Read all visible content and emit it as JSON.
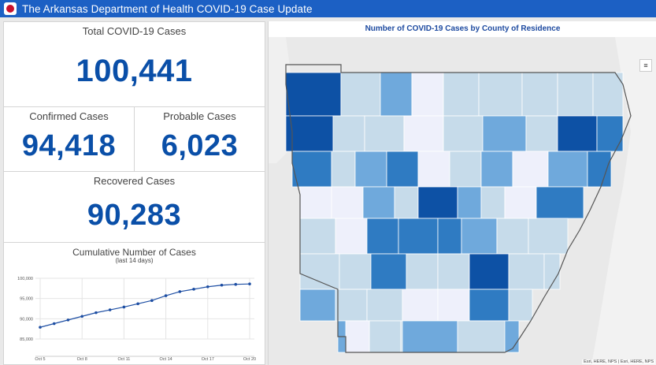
{
  "header": {
    "title": "The Arkansas Department of Health COVID-19 Case Update"
  },
  "total": {
    "label": "Total COVID-19 Cases",
    "value": "100,441"
  },
  "confirmed": {
    "label": "Confirmed Cases",
    "value": "94,418"
  },
  "probable": {
    "label": "Probable Cases",
    "value": "6,023"
  },
  "recovered": {
    "label": "Recovered Cases",
    "value": "90,283"
  },
  "map": {
    "title": "Number of COVID-19 Cases by County of Residence",
    "attribution": "Esri, HERE, NPS | Esri, HERE, NPS",
    "legend_icon": "legend-list-icon",
    "colors": {
      "very_light": "#eef0fb",
      "light": "#c6dbea",
      "medium_light": "#6fa9dc",
      "medium": "#2f7bc2",
      "dark": "#0d51a5"
    }
  },
  "chart_data": {
    "type": "line",
    "title": "Cumulative Number of Cases",
    "subtitle": "(last 14 days)",
    "x": [
      "Oct 5",
      "Oct 6",
      "Oct 7",
      "Oct 8",
      "Oct 9",
      "Oct 10",
      "Oct 11",
      "Oct 12",
      "Oct 13",
      "Oct 14",
      "Oct 15",
      "Oct 16",
      "Oct 17",
      "Oct 18",
      "Oct 19",
      "Oct 20"
    ],
    "xticks": [
      "Oct 5",
      "Oct 8",
      "Oct 11",
      "Oct 14",
      "Oct 17",
      "Oct 20"
    ],
    "yticks": [
      "85,000",
      "90,000",
      "95,000",
      "100,000"
    ],
    "values": [
      87900,
      88800,
      89700,
      90600,
      91500,
      92200,
      92900,
      93700,
      94500,
      95700,
      96700,
      97300,
      97900,
      98300,
      98500,
      98600
    ],
    "ylim": [
      85000,
      100000
    ],
    "color": "#1d4ea3",
    "grid": true
  }
}
